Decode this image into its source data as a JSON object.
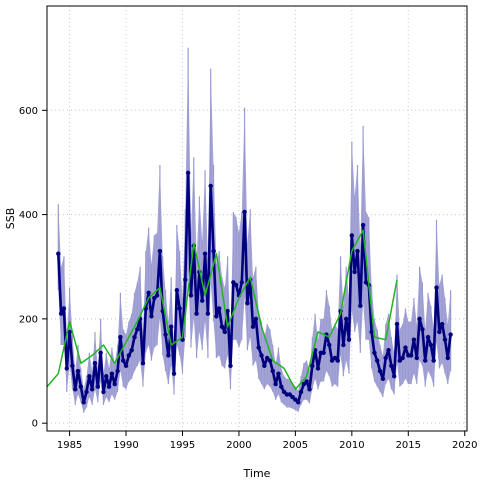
{
  "chart_data": {
    "type": "line",
    "xlabel": "Time",
    "ylabel": "SSB",
    "xlim": [
      1983.0,
      2020.2
    ],
    "ylim": [
      -15,
      800
    ],
    "xticks": [
      1985,
      1990,
      1995,
      2000,
      2005,
      2010,
      2015,
      2020
    ],
    "yticks": [
      0,
      200,
      400,
      600
    ],
    "grid": true,
    "colors": {
      "band": "#9a9ad2",
      "main": "#00007f",
      "green": "#21b521",
      "grid": "#c8c8c8",
      "frame": "#000000"
    },
    "series": [
      {
        "style": "points-line",
        "color": "#00007f",
        "x": [
          1984.0,
          1984.25,
          1984.5,
          1984.75,
          1985.0,
          1985.25,
          1985.5,
          1985.75,
          1986.0,
          1986.25,
          1986.5,
          1986.75,
          1987.0,
          1987.25,
          1987.5,
          1987.75,
          1988.0,
          1988.25,
          1988.5,
          1988.75,
          1989.0,
          1989.25,
          1989.5,
          1989.75,
          1990.0,
          1990.25,
          1990.5,
          1990.75,
          1991.0,
          1991.25,
          1991.5,
          1991.75,
          1992.0,
          1992.25,
          1992.5,
          1992.75,
          1993.0,
          1993.25,
          1993.5,
          1993.75,
          1994.0,
          1994.25,
          1994.5,
          1994.75,
          1995.0,
          1995.25,
          1995.5,
          1995.75,
          1996.0,
          1996.25,
          1996.5,
          1996.75,
          1997.0,
          1997.25,
          1997.5,
          1997.75,
          1998.0,
          1998.25,
          1998.5,
          1998.75,
          1999.0,
          1999.25,
          1999.5,
          1999.75,
          2000.0,
          2000.25,
          2000.5,
          2000.75,
          2001.0,
          2001.25,
          2001.5,
          2001.75,
          2002.0,
          2002.25,
          2002.5,
          2002.75,
          2003.0,
          2003.25,
          2003.5,
          2003.75,
          2004.0,
          2004.25,
          2004.5,
          2004.75,
          2005.0,
          2005.25,
          2005.5,
          2005.75,
          2006.0,
          2006.25,
          2006.5,
          2006.75,
          2007.0,
          2007.25,
          2007.5,
          2007.75,
          2008.0,
          2008.25,
          2008.5,
          2008.75,
          2009.0,
          2009.25,
          2009.5,
          2009.75,
          2010.0,
          2010.25,
          2010.5,
          2010.75,
          2011.0,
          2011.25,
          2011.5,
          2011.75,
          2012.0,
          2012.25,
          2012.5,
          2012.75,
          2013.0,
          2013.25,
          2013.5,
          2013.75,
          2014.0,
          2014.25,
          2014.5,
          2014.75,
          2015.0,
          2015.25,
          2015.5,
          2015.75,
          2016.0,
          2016.25,
          2016.5,
          2016.75,
          2017.0,
          2017.25,
          2017.5,
          2017.75,
          2018.0,
          2018.25,
          2018.5,
          2018.75
        ],
        "y": [
          325,
          210,
          220,
          105,
          175,
          110,
          65,
          100,
          70,
          40,
          60,
          90,
          65,
          115,
          70,
          135,
          60,
          90,
          70,
          95,
          75,
          100,
          165,
          120,
          110,
          130,
          140,
          165,
          180,
          200,
          115,
          220,
          250,
          205,
          240,
          245,
          330,
          215,
          170,
          130,
          185,
          95,
          255,
          220,
          160,
          275,
          480,
          245,
          340,
          210,
          290,
          235,
          325,
          210,
          455,
          330,
          205,
          220,
          185,
          175,
          215,
          110,
          270,
          265,
          245,
          270,
          405,
          230,
          275,
          185,
          200,
          145,
          130,
          110,
          125,
          120,
          100,
          75,
          95,
          70,
          60,
          55,
          55,
          50,
          45,
          40,
          60,
          75,
          80,
          65,
          110,
          140,
          105,
          135,
          135,
          170,
          150,
          120,
          125,
          120,
          215,
          150,
          200,
          160,
          360,
          290,
          330,
          225,
          380,
          270,
          265,
          175,
          135,
          120,
          100,
          85,
          125,
          140,
          110,
          90,
          190,
          120,
          125,
          145,
          130,
          130,
          160,
          125,
          200,
          180,
          120,
          165,
          150,
          120,
          260,
          175,
          190,
          160,
          125,
          170
        ]
      },
      {
        "style": "line",
        "color": "#21b521",
        "x": [
          1983.0,
          1984.0,
          1985.0,
          1986.0,
          1987.0,
          1988.0,
          1989.0,
          1990.0,
          1991.0,
          1992.0,
          1993.0,
          1994.0,
          1995.0,
          1996.0,
          1997.0,
          1998.0,
          1999.0,
          2000.0,
          2001.0,
          2002.0,
          2003.0,
          2004.0,
          2005.0,
          2006.0,
          2007.0,
          2008.0,
          2009.0,
          2010.0,
          2011.0,
          2012.0,
          2013.0,
          2014.0
        ],
        "y": [
          70,
          95,
          195,
          115,
          130,
          150,
          115,
          155,
          195,
          240,
          260,
          150,
          165,
          345,
          245,
          325,
          185,
          240,
          280,
          185,
          120,
          105,
          65,
          90,
          175,
          165,
          210,
          330,
          370,
          165,
          160,
          275
        ]
      }
    ],
    "band": {
      "color": "#9a9ad2",
      "x": [
        1984.0,
        1984.25,
        1984.5,
        1984.75,
        1985.0,
        1985.25,
        1985.5,
        1985.75,
        1986.0,
        1986.25,
        1986.5,
        1986.75,
        1987.0,
        1987.25,
        1987.5,
        1987.75,
        1988.0,
        1988.25,
        1988.5,
        1988.75,
        1989.0,
        1989.25,
        1989.5,
        1989.75,
        1990.0,
        1990.25,
        1990.5,
        1990.75,
        1991.0,
        1991.25,
        1991.5,
        1991.75,
        1992.0,
        1992.25,
        1992.5,
        1992.75,
        1993.0,
        1993.25,
        1993.5,
        1993.75,
        1994.0,
        1994.25,
        1994.5,
        1994.75,
        1995.0,
        1995.25,
        1995.5,
        1995.75,
        1996.0,
        1996.25,
        1996.5,
        1996.75,
        1997.0,
        1997.25,
        1997.5,
        1997.75,
        1998.0,
        1998.25,
        1998.5,
        1998.75,
        1999.0,
        1999.25,
        1999.5,
        1999.75,
        2000.0,
        2000.25,
        2000.5,
        2000.75,
        2001.0,
        2001.25,
        2001.5,
        2001.75,
        2002.0,
        2002.25,
        2002.5,
        2002.75,
        2003.0,
        2003.25,
        2003.5,
        2003.75,
        2004.0,
        2004.25,
        2004.5,
        2004.75,
        2005.0,
        2005.25,
        2005.5,
        2005.75,
        2006.0,
        2006.25,
        2006.5,
        2006.75,
        2007.0,
        2007.25,
        2007.5,
        2007.75,
        2008.0,
        2008.25,
        2008.5,
        2008.75,
        2009.0,
        2009.25,
        2009.5,
        2009.75,
        2010.0,
        2010.25,
        2010.5,
        2010.75,
        2011.0,
        2011.25,
        2011.5,
        2011.75,
        2012.0,
        2012.25,
        2012.5,
        2012.75,
        2013.0,
        2013.25,
        2013.5,
        2013.75,
        2014.0,
        2014.25,
        2014.5,
        2014.75,
        2015.0,
        2015.25,
        2015.5,
        2015.75,
        2016.0,
        2016.25,
        2016.5,
        2016.75,
        2017.0,
        2017.25,
        2017.5,
        2017.75,
        2018.0,
        2018.25,
        2018.5,
        2018.75
      ],
      "lower": [
        255,
        150,
        150,
        60,
        110,
        65,
        35,
        55,
        40,
        20,
        30,
        50,
        35,
        65,
        40,
        80,
        35,
        50,
        40,
        55,
        45,
        60,
        100,
        70,
        65,
        80,
        85,
        100,
        110,
        120,
        70,
        135,
        150,
        120,
        145,
        150,
        200,
        130,
        100,
        75,
        110,
        55,
        150,
        130,
        95,
        165,
        290,
        145,
        200,
        125,
        175,
        140,
        195,
        125,
        270,
        195,
        125,
        130,
        110,
        105,
        130,
        65,
        160,
        160,
        145,
        160,
        240,
        140,
        165,
        110,
        120,
        85,
        75,
        65,
        75,
        70,
        60,
        45,
        55,
        40,
        35,
        30,
        30,
        28,
        25,
        22,
        35,
        45,
        45,
        38,
        65,
        85,
        65,
        80,
        80,
        100,
        90,
        70,
        75,
        70,
        130,
        90,
        120,
        95,
        215,
        175,
        195,
        135,
        230,
        160,
        160,
        105,
        80,
        70,
        60,
        50,
        75,
        85,
        65,
        55,
        115,
        70,
        75,
        85,
        75,
        75,
        95,
        75,
        120,
        110,
        70,
        100,
        90,
        70,
        155,
        105,
        115,
        95,
        75,
        100
      ],
      "upper": [
        420,
        300,
        320,
        165,
        260,
        170,
        100,
        150,
        105,
        65,
        90,
        135,
        100,
        175,
        105,
        200,
        95,
        135,
        105,
        145,
        115,
        150,
        250,
        180,
        170,
        195,
        210,
        250,
        270,
        300,
        175,
        330,
        375,
        305,
        360,
        365,
        495,
        320,
        255,
        195,
        280,
        145,
        380,
        330,
        240,
        410,
        720,
        365,
        510,
        315,
        435,
        350,
        485,
        315,
        680,
        495,
        305,
        330,
        280,
        260,
        320,
        165,
        405,
        395,
        365,
        405,
        605,
        345,
        410,
        280,
        300,
        215,
        195,
        165,
        190,
        180,
        150,
        115,
        145,
        105,
        90,
        85,
        85,
        78,
        70,
        62,
        90,
        115,
        120,
        100,
        165,
        210,
        160,
        200,
        200,
        255,
        225,
        180,
        190,
        180,
        320,
        225,
        300,
        240,
        540,
        435,
        495,
        340,
        570,
        405,
        395,
        265,
        200,
        180,
        150,
        130,
        190,
        210,
        165,
        135,
        285,
        180,
        190,
        220,
        195,
        195,
        240,
        190,
        300,
        270,
        180,
        250,
        225,
        180,
        390,
        265,
        285,
        240,
        190,
        255
      ]
    }
  }
}
